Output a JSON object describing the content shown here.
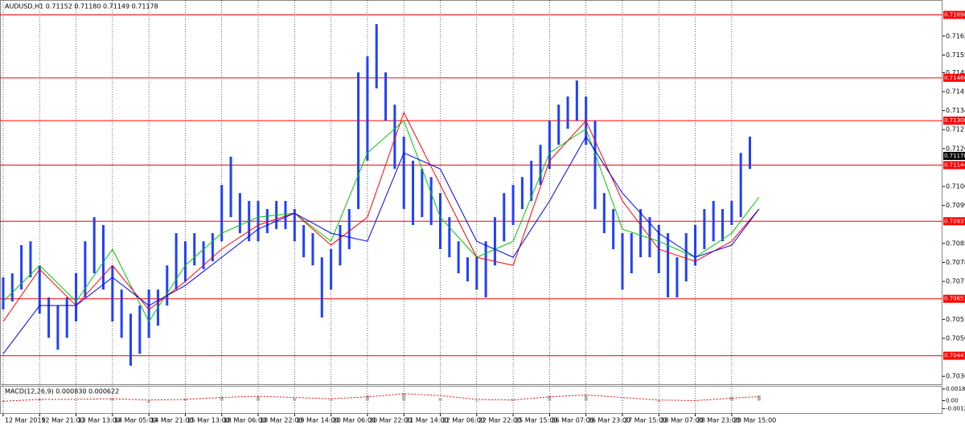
{
  "chart_data": [
    {
      "type": "hilo",
      "title": "AUDUSD,H1  0.71152 0.71180 0.71149 0.71178",
      "bar_color": "#2040ff",
      "x": [
        0,
        4,
        8,
        12,
        16,
        20,
        24,
        28,
        32,
        36,
        40,
        44,
        48,
        52,
        56,
        60,
        64,
        68,
        72,
        76,
        80,
        84,
        88,
        92,
        96,
        100,
        104,
        108,
        112,
        116,
        120,
        124,
        128,
        132,
        136,
        140,
        144,
        148,
        152,
        156,
        160,
        164,
        168,
        172,
        176,
        180,
        184,
        188,
        192,
        196,
        200,
        204,
        208,
        212,
        216,
        220,
        224,
        228,
        232,
        236,
        240,
        244,
        248,
        252,
        256,
        260,
        264,
        268,
        272,
        276,
        280,
        284,
        288,
        292,
        296,
        300,
        304,
        308,
        312,
        316,
        320,
        324,
        328
      ],
      "high": [
        0.7073,
        0.70745,
        0.70849,
        0.70863,
        0.70774,
        0.70656,
        0.70626,
        0.70656,
        0.70745,
        0.70863,
        0.70952,
        0.70923,
        0.70774,
        0.70685,
        0.70596,
        0.70626,
        0.70685,
        0.70685,
        0.70774,
        0.70893,
        0.70863,
        0.70893,
        0.70863,
        0.70893,
        0.71071,
        0.71175,
        0.71041,
        0.71012,
        0.71012,
        0.70982,
        0.71012,
        0.71012,
        0.70982,
        0.70923,
        0.70893,
        0.70804,
        0.70834,
        0.70923,
        0.70982,
        0.71486,
        0.71545,
        0.71664,
        0.71486,
        0.71367,
        0.71249,
        0.7116,
        0.7113,
        0.711,
        0.71041,
        0.70952,
        0.70863,
        0.70804,
        0.70804,
        0.70863,
        0.70952,
        0.71041,
        0.71071,
        0.711,
        0.7116,
        0.71219,
        0.71308,
        0.71367,
        0.71397,
        0.71456,
        0.71397,
        0.71308,
        0.71041,
        0.70982,
        0.70893,
        0.70893,
        0.70982,
        0.70952,
        0.70923,
        0.70893,
        0.70804,
        0.70893,
        0.70923,
        0.70982,
        0.71012,
        0.70982,
        0.71012,
        0.71189,
        0.71249
      ],
      "low": [
        0.70611,
        0.70641,
        0.70685,
        0.7073,
        0.70596,
        0.70507,
        0.70463,
        0.70507,
        0.70567,
        0.70656,
        0.70745,
        0.70685,
        0.70567,
        0.70507,
        0.70404,
        0.70448,
        0.70507,
        0.70552,
        0.70626,
        0.70685,
        0.70715,
        0.70774,
        0.7076,
        0.70789,
        0.70863,
        0.70952,
        0.70893,
        0.70863,
        0.70863,
        0.70893,
        0.70908,
        0.70908,
        0.70863,
        0.70804,
        0.70774,
        0.70582,
        0.70685,
        0.70774,
        0.70834,
        0.70982,
        0.7116,
        0.71427,
        0.71308,
        0.7113,
        0.70982,
        0.70923,
        0.70952,
        0.70923,
        0.70834,
        0.70804,
        0.70745,
        0.70715,
        0.70685,
        0.70656,
        0.70774,
        0.70863,
        0.70923,
        0.70982,
        0.71012,
        0.71071,
        0.7113,
        0.71219,
        0.71278,
        0.71308,
        0.71219,
        0.70982,
        0.70893,
        0.70834,
        0.70685,
        0.70745,
        0.70804,
        0.70804,
        0.70745,
        0.70656,
        0.70656,
        0.70715,
        0.70774,
        0.70834,
        0.70863,
        0.70863,
        0.70923,
        0.70952,
        0.7113
      ],
      "series": [
        {
          "color": "#00c800",
          "x": [
            0,
            16,
            32,
            48,
            64,
            80,
            96,
            112,
            128,
            144,
            160,
            176,
            192,
            208,
            224,
            240,
            256,
            272,
            288,
            304,
            320,
            332
          ],
          "values": [
            0.70641,
            0.70774,
            0.70641,
            0.70834,
            0.70567,
            0.70774,
            0.70893,
            0.70952,
            0.70967,
            0.70863,
            0.71189,
            0.71308,
            0.70952,
            0.70804,
            0.70863,
            0.71189,
            0.71278,
            0.70908,
            0.70863,
            0.70804,
            0.70893,
            0.71026
          ]
        },
        {
          "color": "#ff0000",
          "x": [
            0,
            16,
            32,
            48,
            64,
            80,
            96,
            112,
            128,
            144,
            160,
            176,
            192,
            208,
            224,
            240,
            256,
            272,
            288,
            304,
            320,
            332
          ],
          "values": [
            0.70567,
            0.7076,
            0.70626,
            0.70774,
            0.70611,
            0.70715,
            0.70834,
            0.70923,
            0.70967,
            0.70849,
            0.70952,
            0.71338,
            0.71071,
            0.70804,
            0.70774,
            0.7116,
            0.71308,
            0.71012,
            0.70834,
            0.70789,
            0.70863,
            0.70982
          ]
        },
        {
          "color": "#0000ff",
          "x": [
            0,
            16,
            32,
            48,
            64,
            80,
            96,
            112,
            128,
            144,
            160,
            176,
            192,
            208,
            224,
            240,
            256,
            272,
            288,
            304,
            320,
            332
          ],
          "values": [
            0.70448,
            0.70626,
            0.70626,
            0.7073,
            0.70626,
            0.707,
            0.70804,
            0.70908,
            0.70967,
            0.70893,
            0.70863,
            0.71189,
            0.7113,
            0.70863,
            0.70804,
            0.71012,
            0.71249,
            0.71041,
            0.70893,
            0.70804,
            0.70849,
            0.70982
          ]
        }
      ],
      "level_color": "#ff0000",
      "levels": [
        0.71698,
        0.71466,
        0.71308,
        0.71144,
        0.70937,
        0.70651,
        0.70441
      ],
      "last_price": 0.71178,
      "xlim": [
        -1.4,
        412.6
      ],
      "ylim": [
        0.70336,
        0.71753
      ],
      "xticks": [
        {
          "value": 0,
          "label": "12 Mar 2019"
        },
        {
          "value": 16,
          "label": "12 Mar 21:00"
        },
        {
          "value": 32,
          "label": "13 Mar 13:00"
        },
        {
          "value": 48,
          "label": "14 Mar 05:00"
        },
        {
          "value": 64,
          "label": "14 Mar 21:00"
        },
        {
          "value": 80,
          "label": "15 Mar 13:00"
        },
        {
          "value": 96,
          "label": "18 Mar 06:00"
        },
        {
          "value": 112,
          "label": "18 Mar 22:00"
        },
        {
          "value": 128,
          "label": "19 Mar 14:00"
        },
        {
          "value": 144,
          "label": "20 Mar 06:00"
        },
        {
          "value": 160,
          "label": "20 Mar 22:00"
        },
        {
          "value": 176,
          "label": "21 Mar 14:00"
        },
        {
          "value": 192,
          "label": "22 Mar 06:00"
        },
        {
          "value": 208,
          "label": "22 Mar 22:00"
        },
        {
          "value": 224,
          "label": "25 Mar 15:00"
        },
        {
          "value": 240,
          "label": "26 Mar 07:00"
        },
        {
          "value": 256,
          "label": "26 Mar 23:00"
        },
        {
          "value": 272,
          "label": "27 Mar 15:00"
        },
        {
          "value": 288,
          "label": "28 Mar 07:00"
        },
        {
          "value": 304,
          "label": "28 Mar 23:00"
        },
        {
          "value": 320,
          "label": "29 Mar 15:00"
        }
      ],
      "yticks": [
        {
          "value": 0.7162,
          "label": "0.71620"
        },
        {
          "value": 0.7155,
          "label": "0.71550"
        },
        0.71485,
        0.71415,
        0.71345,
        0.71275,
        0.71205,
        0.71065,
        0.70995,
        0.70855,
        0.70785,
        0.70715,
        0.70575,
        0.70505,
        0.70365
      ],
      "grid": true
    },
    {
      "type": "macd",
      "title": "MACD(12,26,9) 0.000830 0.000622",
      "x": [
        0,
        16,
        32,
        48,
        64,
        80,
        96,
        112,
        128,
        144,
        160,
        176,
        192,
        208,
        224,
        240,
        256,
        272,
        288,
        304,
        320,
        332
      ],
      "histogram": [
        -0.0002,
        0.0003,
        0.0001,
        0.0004,
        -0.0003,
        0.0003,
        0.0006,
        0.0007,
        0.0004,
        0.0002,
        0.0009,
        0.0011,
        0.0004,
        -0.0001,
        0.0002,
        0.0008,
        0.0009,
        0.0001,
        -0.0002,
        0.0001,
        0.0006,
        0.00083
      ],
      "signal": [
        -0.0001,
        0.0002,
        0.0002,
        0.0003,
        0.0001,
        0.0002,
        0.0005,
        0.0007,
        0.0005,
        0.0003,
        0.0006,
        0.0011,
        0.0008,
        0.0002,
        0.0001,
        0.0006,
        0.0009,
        0.0005,
        0.0001,
        0,
        0.0004,
        0.000622
      ],
      "histogram_color": "#b0b0b0",
      "signal_color": "#ff0000",
      "ylim": [
        -0.00197,
        0.00222
      ],
      "yticks": [
        0.001846,
        {
          "value": 0,
          "label": "0.00"
        },
        -0.00125
      ]
    }
  ]
}
